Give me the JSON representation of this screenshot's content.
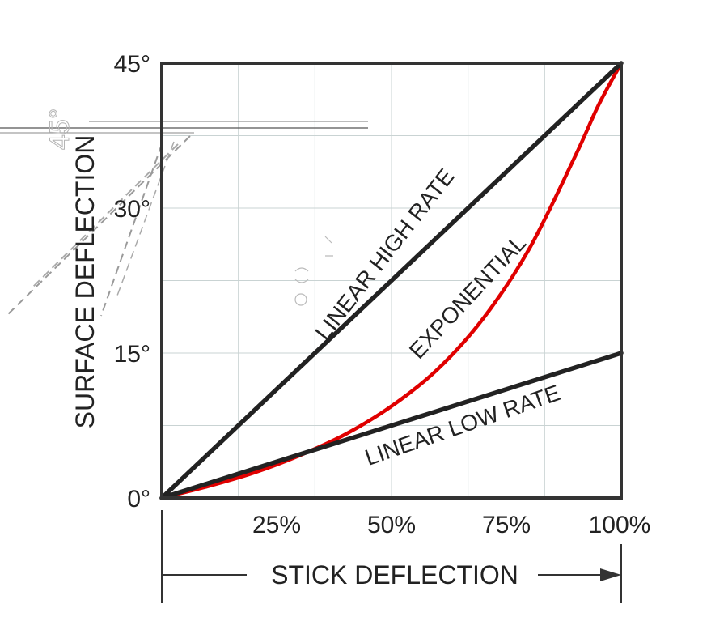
{
  "chart_data": {
    "type": "line",
    "xlabel": "STICK DEFLECTION",
    "ylabel": "SURFACE DEFLECTION",
    "xlim": [
      0,
      100
    ],
    "ylim": [
      0,
      45
    ],
    "x_ticks": [
      {
        "value": 25,
        "label": "25%"
      },
      {
        "value": 50,
        "label": "50%"
      },
      {
        "value": 75,
        "label": "75%"
      },
      {
        "value": 100,
        "label": "100%"
      }
    ],
    "y_ticks": [
      {
        "value": 0,
        "label": "0°"
      },
      {
        "value": 15,
        "label": "15°"
      },
      {
        "value": 30,
        "label": "30°"
      },
      {
        "value": 45,
        "label": "45°"
      }
    ],
    "grid": true,
    "series": [
      {
        "name": "LINEAR HIGH RATE",
        "color": "#222222",
        "x": [
          0,
          100
        ],
        "y": [
          0,
          45
        ]
      },
      {
        "name": "EXPONENTIAL",
        "color": "#e00000",
        "x": [
          0,
          10,
          20,
          30,
          40,
          50,
          60,
          70,
          80,
          90,
          95,
          100
        ],
        "y": [
          0,
          1.2,
          2.6,
          4.4,
          6.6,
          9.5,
          13.3,
          18.6,
          25.8,
          35.4,
          40.6,
          45
        ]
      },
      {
        "name": "LINEAR LOW RATE",
        "color": "#222222",
        "x": [
          0,
          100
        ],
        "y": [
          0,
          15
        ]
      }
    ],
    "annotations": [
      "LINEAR HIGH RATE",
      "EXPONENTIAL",
      "LINEAR LOW RATE"
    ]
  }
}
